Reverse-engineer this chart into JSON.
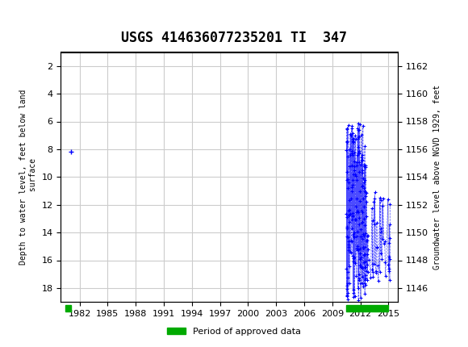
{
  "title": "USGS 414636077235201 TI  347",
  "ylabel_left": "Depth to water level, feet below land\n surface",
  "ylabel_right": "Groundwater level above NGVD 1929, feet",
  "ylim_left": [
    19,
    1
  ],
  "ylim_right": [
    1145,
    1163
  ],
  "xlim": [
    1980,
    2016
  ],
  "xticks": [
    1982,
    1985,
    1988,
    1991,
    1994,
    1997,
    2000,
    2003,
    2006,
    2009,
    2012,
    2015
  ],
  "yticks_left": [
    2,
    4,
    6,
    8,
    10,
    12,
    14,
    16,
    18
  ],
  "yticks_right": [
    1146,
    1148,
    1150,
    1152,
    1154,
    1156,
    1158,
    1160,
    1162
  ],
  "header_color": "#006644",
  "bg_color": "#ffffff",
  "grid_color": "#cccccc",
  "point_color": "#0000ff",
  "approved_color": "#00aa00",
  "legend_label": "Period of approved data",
  "single_yr": 1981.1,
  "single_depth": 8.2
}
